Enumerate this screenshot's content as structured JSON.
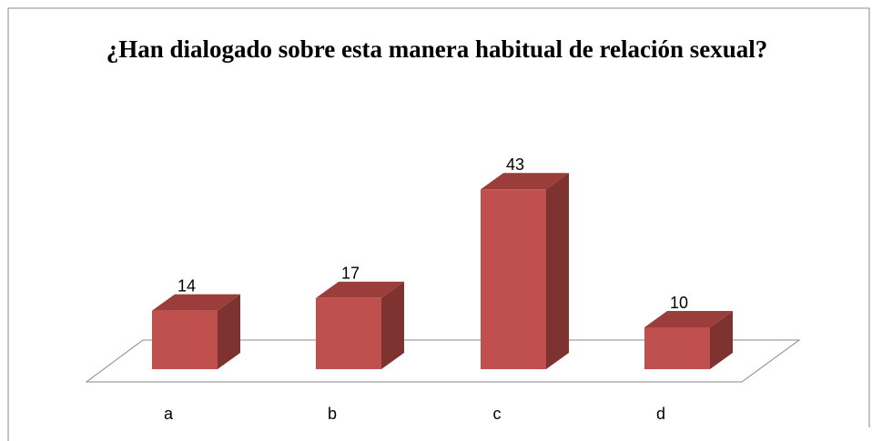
{
  "chart_data": {
    "type": "bar3d",
    "title": "¿Han dialogado sobre esta manera habitual de relación sexual?",
    "categories": [
      "a",
      "b",
      "c",
      "d"
    ],
    "values": [
      14,
      17,
      43,
      10
    ],
    "color": "#c0504d",
    "ylim": [
      0,
      50
    ]
  }
}
